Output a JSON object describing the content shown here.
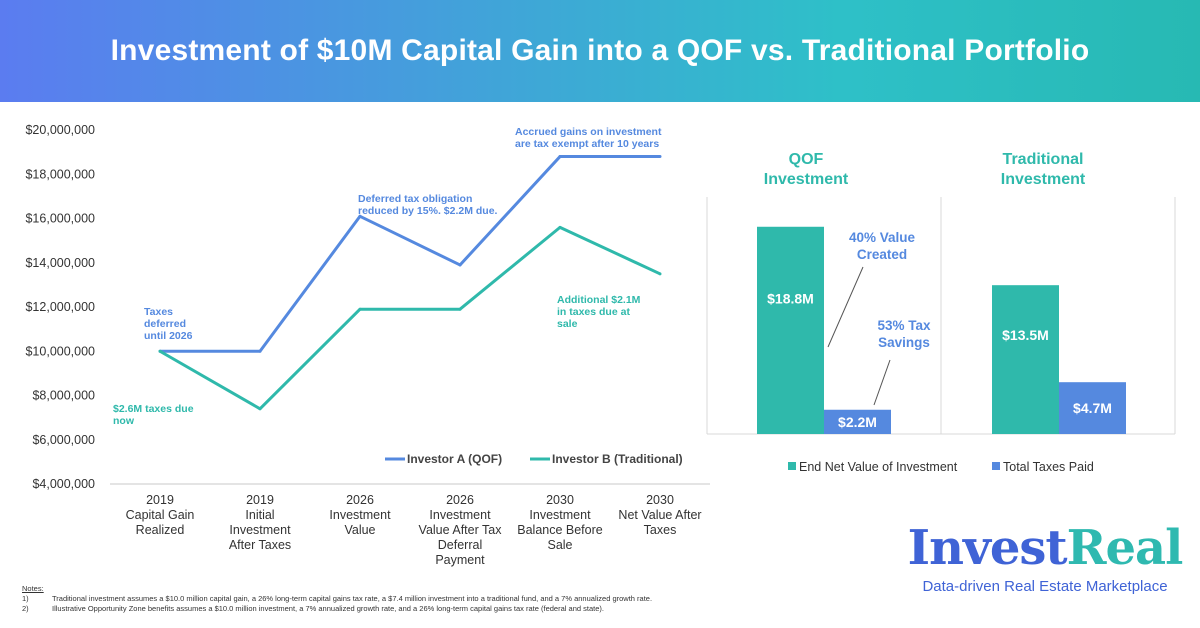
{
  "header": {
    "title": "Investment of $10M Capital Gain into a QOF vs. Traditional Portfolio"
  },
  "colors": {
    "blue": "#5589df",
    "teal": "#2fb9ab",
    "header_start": "#5b7cf0",
    "header_end": "#27b9b3"
  },
  "chart_data": [
    {
      "type": "line",
      "categories": [
        [
          "2019",
          "Capital Gain",
          "Realized"
        ],
        [
          "2019",
          "Initial",
          "Investment",
          "After Taxes"
        ],
        [
          "2026",
          "Investment",
          "Value"
        ],
        [
          "2026",
          "Investment",
          "Value After Tax",
          "Deferral",
          "Payment"
        ],
        [
          "2030",
          "Investment",
          "Balance Before",
          "Sale"
        ],
        [
          "2030",
          "Net Value After",
          "Taxes"
        ]
      ],
      "series": [
        {
          "name": "Investor A (QOF)",
          "color": "#5589df",
          "values": [
            10000000,
            10000000,
            16100000,
            13900000,
            18800000,
            18800000
          ]
        },
        {
          "name": "Investor B (Traditional)",
          "color": "#2fb9ab",
          "values": [
            10000000,
            7400000,
            11900000,
            11900000,
            15600000,
            13500000
          ]
        }
      ],
      "ylim": [
        4000000,
        20000000
      ],
      "yticks": [
        "$4,000,000",
        "$6,000,000",
        "$8,000,000",
        "$10,000,000",
        "$12,000,000",
        "$14,000,000",
        "$16,000,000",
        "$18,000,000",
        "$20,000,000"
      ],
      "ytick_values": [
        4000000,
        6000000,
        8000000,
        10000000,
        12000000,
        14000000,
        16000000,
        18000000,
        20000000
      ],
      "legend": "bottom-right",
      "annotations": {
        "taxes_deferred": [
          "Taxes",
          "deferred",
          "until 2026"
        ],
        "taxes_due_now": [
          "$2.6M taxes due",
          "now"
        ],
        "deferred_obligation": [
          "Deferred tax obligation",
          "reduced by 15%. $2.2M due."
        ],
        "accrued_gains": [
          "Accrued gains on investment",
          "are tax exempt after 10 years"
        ],
        "additional_taxes": [
          "Additional $2.1M",
          "in taxes due at",
          "sale"
        ]
      }
    },
    {
      "type": "bar",
      "groups": [
        {
          "title": [
            "QOF",
            "Investment"
          ],
          "values": [
            18.8,
            2.2
          ],
          "labels": [
            "$18.8M",
            "$2.2M"
          ]
        },
        {
          "title": [
            "Traditional",
            "Investment"
          ],
          "values": [
            13.5,
            4.7
          ],
          "labels": [
            "$13.5M",
            "$4.7M"
          ]
        }
      ],
      "series": [
        {
          "name": "End Net Value of Investment",
          "color": "#2fb9ab"
        },
        {
          "name": "Total Taxes Paid",
          "color": "#5589df"
        }
      ],
      "ylim": [
        0,
        21.5
      ],
      "legend": "bottom",
      "annotations": {
        "value_created": [
          "40% Value",
          "Created"
        ],
        "tax_savings": [
          "53% Tax",
          "Savings"
        ]
      }
    }
  ],
  "notes": {
    "title": "Notes:",
    "items": [
      {
        "num": "1)",
        "text": "Traditional investment assumes a $10.0 million capital gain, a 26% long-term capital gains tax rate, a $7.4 million investment into a traditional fund, and a 7% annualized growth rate."
      },
      {
        "num": "2)",
        "text": "Illustrative Opportunity Zone benefits assumes a $10.0 million investment, a 7% annualized growth rate, and a 26% long-term capital gains tax rate (federal and state)."
      }
    ]
  },
  "brand": {
    "name_part1": "Invest",
    "name_part2": "Real",
    "tagline": "Data-driven Real Estate Marketplace"
  }
}
